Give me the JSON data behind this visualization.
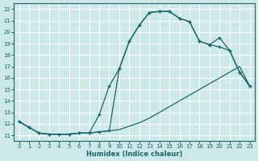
{
  "xlabel": "Humidex (Indice chaleur)",
  "background_color": "#cce8e8",
  "grid_color": "#ffffff",
  "line_color": "#1a6666",
  "xlim": [
    -0.5,
    23.5
  ],
  "ylim": [
    10.5,
    22.5
  ],
  "xticks": [
    0,
    1,
    2,
    3,
    4,
    5,
    6,
    7,
    8,
    9,
    10,
    11,
    12,
    13,
    14,
    15,
    16,
    17,
    18,
    19,
    20,
    21,
    22,
    23
  ],
  "yticks": [
    11,
    12,
    13,
    14,
    15,
    16,
    17,
    18,
    19,
    20,
    21,
    22
  ],
  "curve_min_x": [
    0,
    1,
    2,
    3,
    4,
    5,
    6,
    7,
    8,
    9,
    10,
    11,
    12,
    13,
    14,
    15,
    16,
    17,
    18,
    19,
    20,
    21,
    22,
    23
  ],
  "curve_min_y": [
    12.2,
    11.7,
    11.2,
    11.1,
    11.1,
    11.1,
    11.2,
    11.2,
    11.3,
    11.4,
    11.5,
    11.8,
    12.1,
    12.5,
    13.0,
    13.5,
    14.0,
    14.5,
    15.0,
    15.5,
    16.0,
    16.5,
    17.0,
    15.3
  ],
  "curve_main_x": [
    0,
    1,
    2,
    3,
    4,
    5,
    6,
    7,
    8,
    9,
    10,
    11,
    12,
    13,
    14,
    15,
    16,
    17,
    18,
    19,
    20,
    21,
    22,
    23
  ],
  "curve_main_y": [
    12.2,
    11.7,
    11.2,
    11.1,
    11.1,
    11.1,
    11.2,
    11.2,
    12.8,
    15.3,
    16.8,
    19.2,
    20.6,
    21.7,
    21.8,
    21.8,
    21.2,
    20.9,
    19.2,
    18.9,
    19.5,
    18.4,
    16.5,
    15.3
  ],
  "curve_alt_x": [
    0,
    1,
    2,
    3,
    4,
    5,
    6,
    7,
    8,
    9,
    10,
    11,
    12,
    13,
    14,
    15,
    16,
    17,
    18,
    19,
    20,
    21,
    22,
    23
  ],
  "curve_alt_y": [
    12.2,
    11.7,
    11.2,
    11.1,
    11.1,
    11.1,
    11.2,
    11.2,
    11.3,
    11.4,
    16.8,
    19.2,
    20.6,
    21.7,
    21.8,
    21.8,
    21.2,
    20.9,
    19.2,
    18.9,
    18.7,
    18.4,
    16.5,
    15.3
  ]
}
